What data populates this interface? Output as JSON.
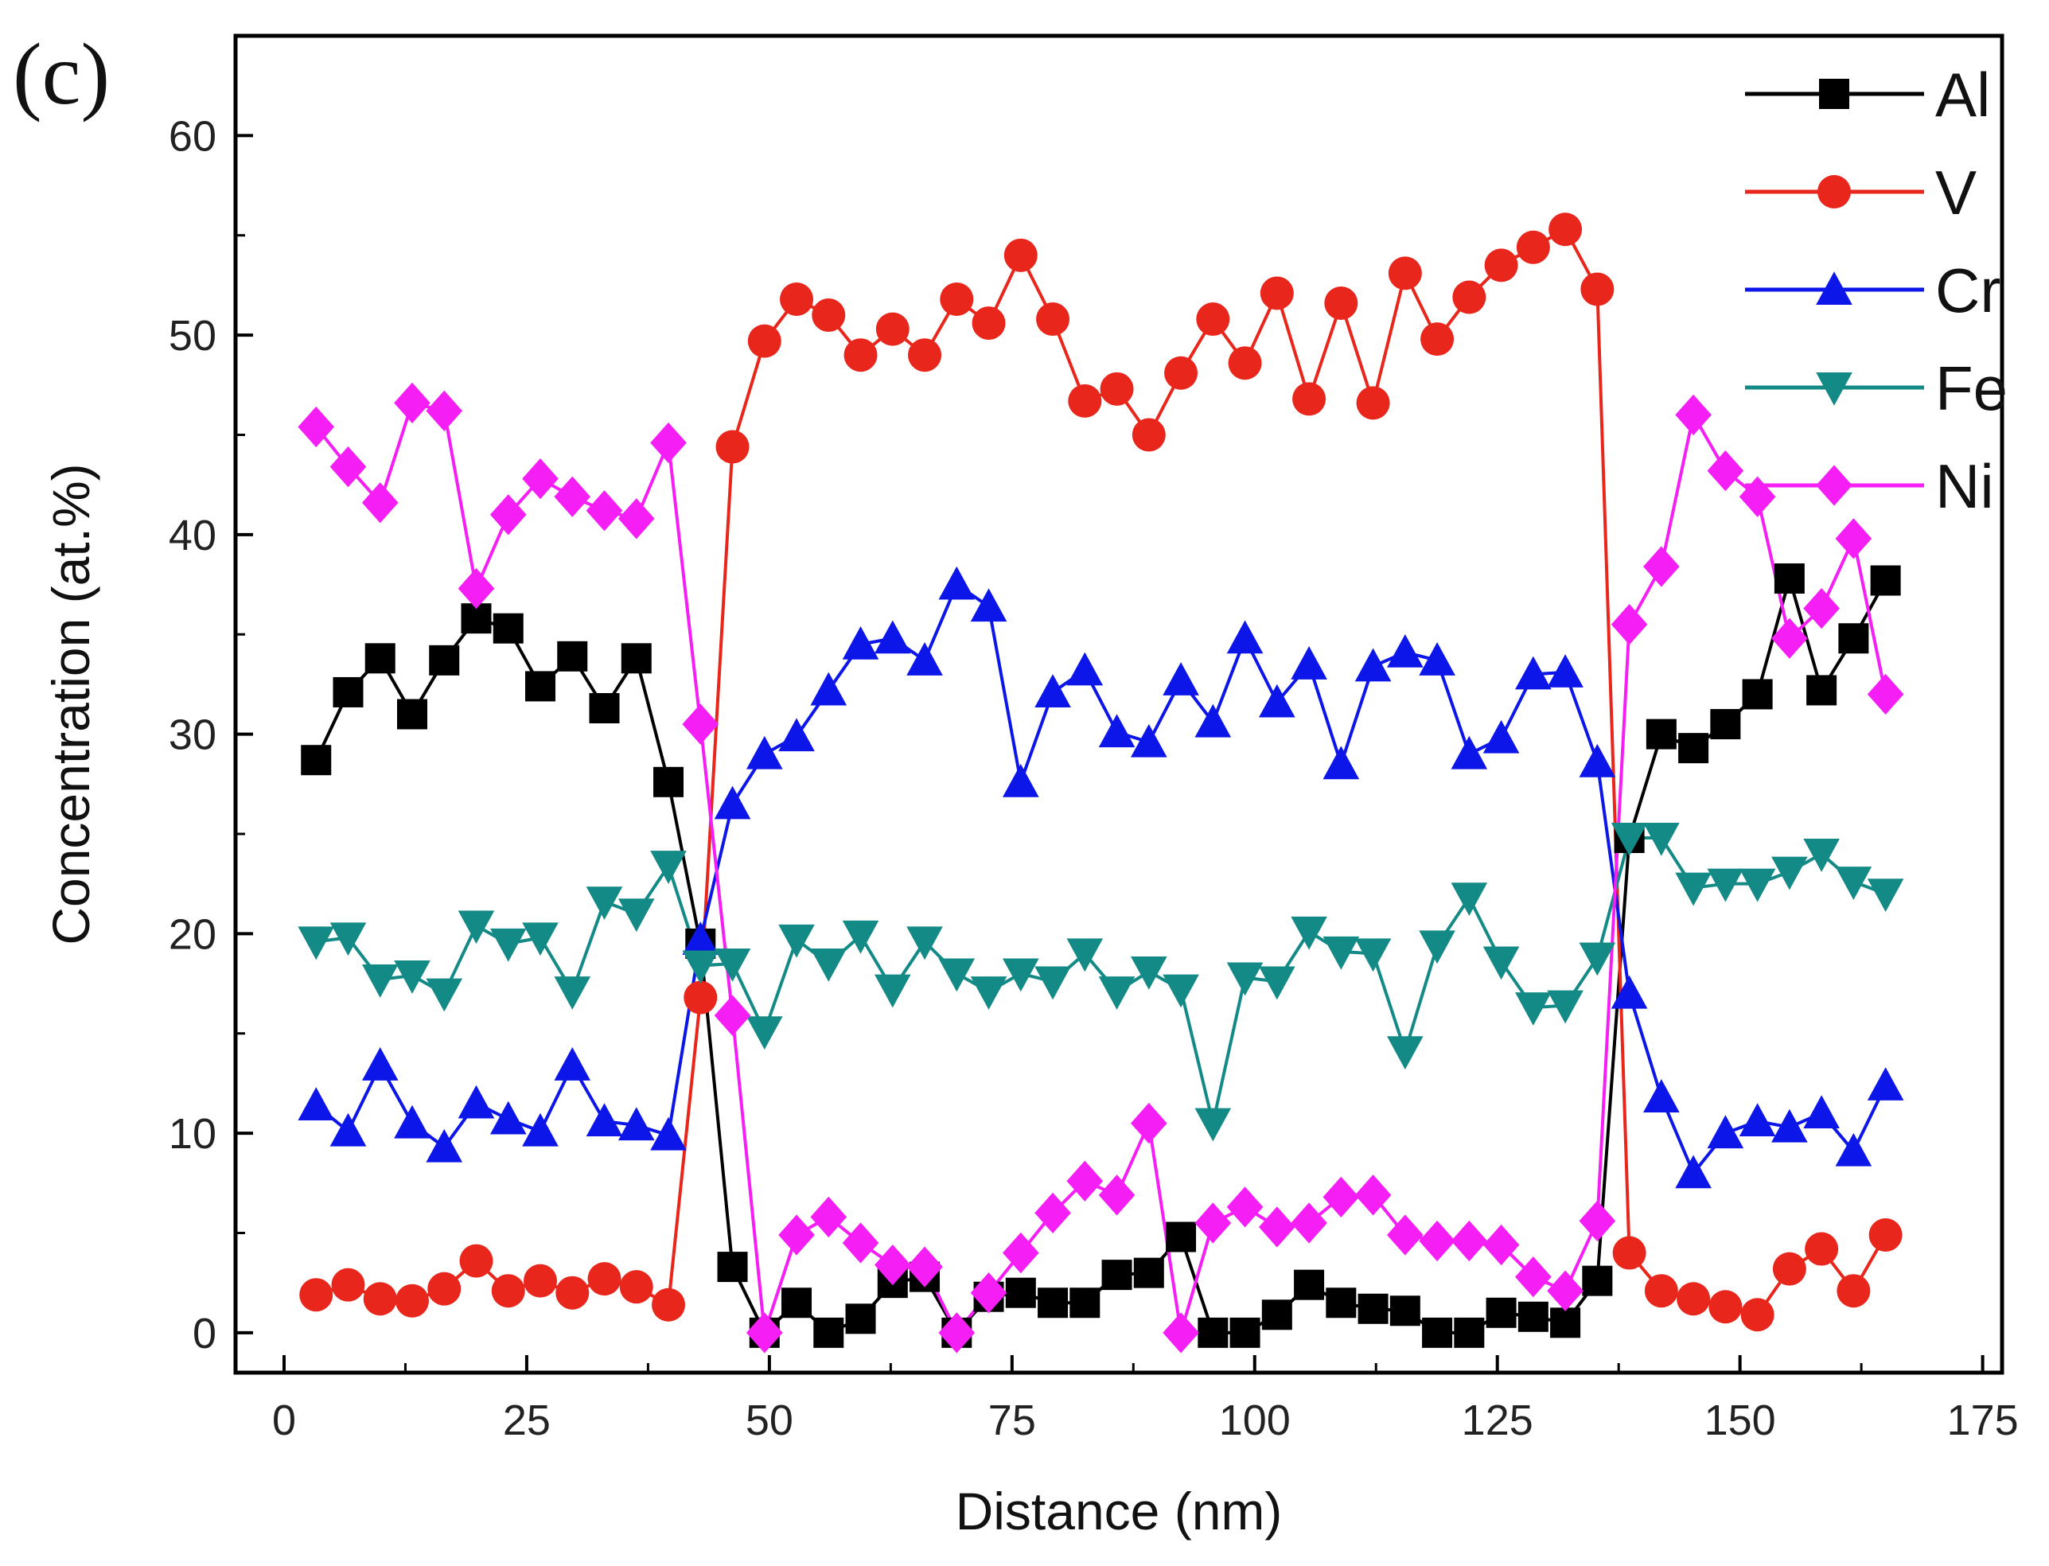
{
  "panel_label": "(c)",
  "chart_data": {
    "type": "line",
    "title": "",
    "xlabel": "Distance (nm)",
    "ylabel": "Concentration (at.%)",
    "xlim": [
      -5,
      177
    ],
    "ylim": [
      -2,
      65
    ],
    "xticks": [
      0,
      25,
      50,
      75,
      100,
      125,
      150,
      175
    ],
    "yticks": [
      0,
      10,
      20,
      30,
      40,
      50,
      60
    ],
    "legend_position": "top-right",
    "x": [
      3.3,
      6.6,
      9.9,
      13.2,
      16.5,
      19.8,
      23.1,
      26.4,
      29.7,
      33.0,
      36.3,
      39.6,
      42.9,
      46.2,
      49.5,
      52.8,
      56.1,
      59.4,
      62.7,
      66.0,
      69.3,
      72.6,
      75.9,
      79.2,
      82.5,
      85.8,
      89.1,
      92.4,
      95.7,
      99.0,
      102.3,
      105.6,
      108.9,
      112.2,
      115.5,
      118.8,
      122.1,
      125.4,
      128.7,
      132.0,
      135.3,
      138.6,
      141.9,
      145.2,
      148.5,
      151.8,
      155.1,
      158.4,
      161.7,
      165.0
    ],
    "series": [
      {
        "name": "Al",
        "color": "#000000",
        "marker": "square",
        "values": [
          28.7,
          32.1,
          33.8,
          31.0,
          33.7,
          35.8,
          35.3,
          32.4,
          33.9,
          31.3,
          33.8,
          27.6,
          19.5,
          3.3,
          0.0,
          1.5,
          0.0,
          0.7,
          2.5,
          2.8,
          0.0,
          1.8,
          2.0,
          1.5,
          1.5,
          2.9,
          3.0,
          4.8,
          0.0,
          0.0,
          0.9,
          2.4,
          1.5,
          1.2,
          1.1,
          0.0,
          0.0,
          1.0,
          0.8,
          0.5,
          2.6,
          24.8,
          30.0,
          29.3,
          30.5,
          32.0,
          37.8,
          32.2,
          34.8,
          37.7
        ]
      },
      {
        "name": "V",
        "color": "#e8261c",
        "marker": "circle",
        "values": [
          1.9,
          2.4,
          1.7,
          1.6,
          2.2,
          3.6,
          2.1,
          2.6,
          2.0,
          2.7,
          2.3,
          1.4,
          16.8,
          44.4,
          49.7,
          51.8,
          51.0,
          49.0,
          50.3,
          49.0,
          51.8,
          50.6,
          54.0,
          50.8,
          46.7,
          47.3,
          45.0,
          48.1,
          50.8,
          48.6,
          52.1,
          46.8,
          51.6,
          46.6,
          53.1,
          49.8,
          51.9,
          53.5,
          54.4,
          55.3,
          52.3,
          4.0,
          2.1,
          1.7,
          1.3,
          0.9,
          3.2,
          4.2,
          2.1,
          4.9
        ]
      },
      {
        "name": "Cr",
        "color": "#0d16e8",
        "marker": "triangle-up",
        "values": [
          11.4,
          10.1,
          13.4,
          10.5,
          9.3,
          11.5,
          10.7,
          10.1,
          13.4,
          10.6,
          10.4,
          9.9,
          19.7,
          26.5,
          29.0,
          29.9,
          32.2,
          34.5,
          34.8,
          33.7,
          37.5,
          36.4,
          27.6,
          32.1,
          33.2,
          30.1,
          29.6,
          32.7,
          30.6,
          34.8,
          31.6,
          33.5,
          28.5,
          33.4,
          34.1,
          33.7,
          29.0,
          29.8,
          33.0,
          33.1,
          28.6,
          17.0,
          11.8,
          8.0,
          10.0,
          10.6,
          10.3,
          11.0,
          9.1,
          12.4
        ]
      },
      {
        "name": "Fe",
        "color": "#138a86",
        "marker": "triangle-down",
        "values": [
          19.6,
          19.8,
          17.7,
          17.9,
          17.0,
          20.4,
          19.5,
          19.8,
          17.1,
          21.6,
          21.0,
          23.4,
          18.4,
          18.5,
          15.1,
          19.7,
          18.5,
          19.9,
          17.2,
          19.6,
          18.0,
          17.1,
          18.0,
          17.6,
          19.0,
          17.1,
          18.1,
          17.2,
          10.5,
          17.8,
          17.6,
          20.1,
          19.1,
          19.0,
          14.1,
          19.4,
          21.8,
          18.6,
          16.3,
          16.4,
          18.8,
          24.8,
          24.8,
          22.3,
          22.5,
          22.5,
          23.1,
          24.0,
          22.6,
          22.0
        ]
      },
      {
        "name": "Ni",
        "color": "#f51ef5",
        "marker": "diamond",
        "values": [
          45.4,
          43.4,
          41.6,
          46.6,
          46.2,
          37.3,
          41.0,
          42.8,
          41.9,
          41.2,
          40.8,
          44.6,
          30.5,
          15.9,
          0.0,
          4.9,
          5.8,
          4.5,
          3.4,
          3.3,
          0.0,
          2.0,
          4.0,
          6.0,
          7.6,
          6.9,
          10.5,
          0.0,
          5.5,
          6.3,
          5.3,
          5.5,
          6.8,
          6.9,
          4.9,
          4.6,
          4.6,
          4.4,
          2.8,
          2.1,
          5.6,
          35.5,
          38.4,
          46.0,
          43.2,
          41.9,
          34.8,
          36.3,
          39.8,
          32.0
        ]
      }
    ]
  }
}
